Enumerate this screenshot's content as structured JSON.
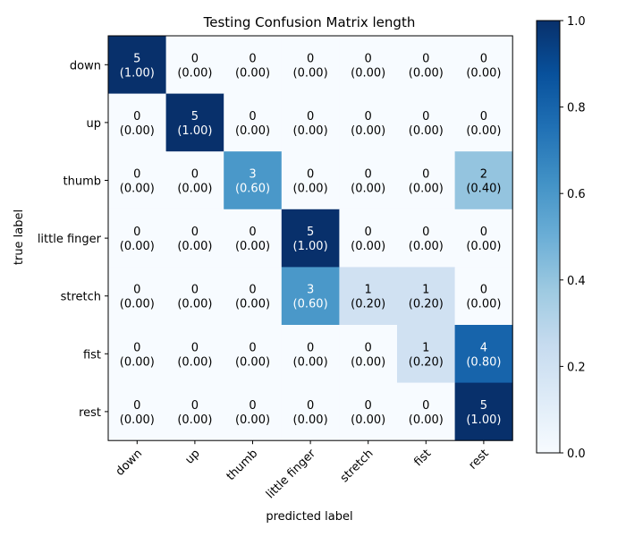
{
  "chart_data": {
    "type": "heatmap",
    "title": "Testing Confusion Matrix length",
    "xlabel": "predicted label",
    "ylabel": "true label",
    "x_categories": [
      "down",
      "up",
      "thumb",
      "little finger",
      "stretch",
      "fist",
      "rest"
    ],
    "y_categories": [
      "down",
      "up",
      "thumb",
      "little finger",
      "stretch",
      "fist",
      "rest"
    ],
    "counts": [
      [
        5,
        0,
        0,
        0,
        0,
        0,
        0
      ],
      [
        0,
        5,
        0,
        0,
        0,
        0,
        0
      ],
      [
        0,
        0,
        3,
        0,
        0,
        0,
        2
      ],
      [
        0,
        0,
        0,
        5,
        0,
        0,
        0
      ],
      [
        0,
        0,
        0,
        3,
        1,
        1,
        0
      ],
      [
        0,
        0,
        0,
        0,
        0,
        1,
        4
      ],
      [
        0,
        0,
        0,
        0,
        0,
        0,
        5
      ]
    ],
    "normalized": [
      [
        "1.00",
        "0.00",
        "0.00",
        "0.00",
        "0.00",
        "0.00",
        "0.00"
      ],
      [
        "0.00",
        "1.00",
        "0.00",
        "0.00",
        "0.00",
        "0.00",
        "0.00"
      ],
      [
        "0.00",
        "0.00",
        "0.60",
        "0.00",
        "0.00",
        "0.00",
        "0.40"
      ],
      [
        "0.00",
        "0.00",
        "0.00",
        "1.00",
        "0.00",
        "0.00",
        "0.00"
      ],
      [
        "0.00",
        "0.00",
        "0.00",
        "0.60",
        "0.20",
        "0.20",
        "0.00"
      ],
      [
        "0.00",
        "0.00",
        "0.00",
        "0.00",
        "0.00",
        "0.20",
        "0.80"
      ],
      [
        "0.00",
        "0.00",
        "0.00",
        "0.00",
        "0.00",
        "0.00",
        "1.00"
      ]
    ],
    "colorbar": {
      "range": [
        0,
        1
      ],
      "ticks": [
        "0.0",
        "0.2",
        "0.4",
        "0.6",
        "0.8",
        "1.0"
      ],
      "colormap": "Blues"
    },
    "grid": false
  }
}
